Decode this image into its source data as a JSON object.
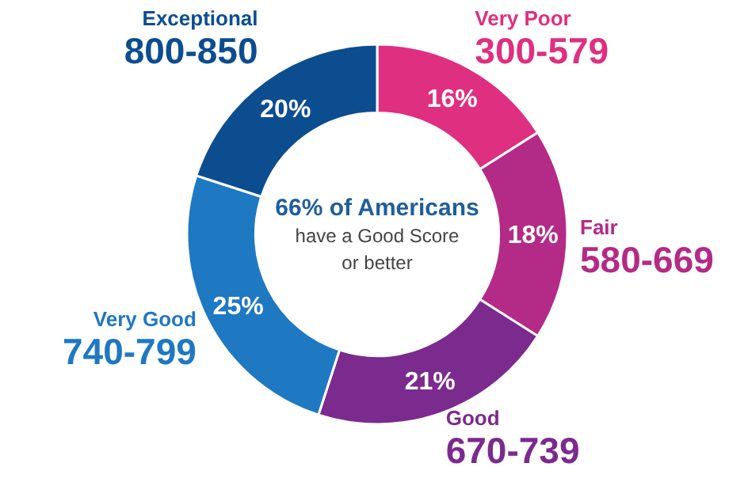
{
  "chart_data": {
    "type": "donut",
    "categories": [
      "Very Poor\n300-579",
      "Fair\n580-669",
      "Good\n670-739",
      "Very Good\n740-799",
      "Exceptional\n800-850"
    ],
    "values": [
      16,
      18,
      21,
      25,
      20
    ],
    "colors": [
      "#df2f80",
      "#b42a87",
      "#7b2a8e",
      "#1f78c2",
      "#0c4d90"
    ],
    "value_labels": [
      "16%",
      "18%",
      "21%",
      "25%",
      "20%"
    ],
    "annotations": [
      "66% of Americans",
      "have a Good Score",
      "or better"
    ]
  }
}
